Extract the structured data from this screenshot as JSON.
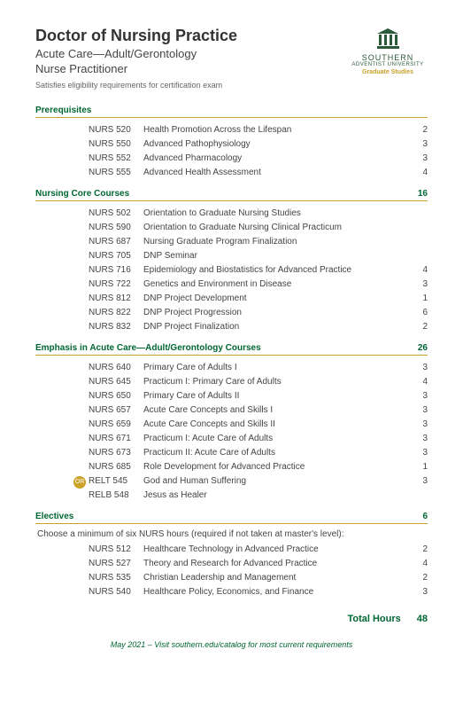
{
  "colors": {
    "accent_green": "#006633",
    "rule_gold": "#c9a227",
    "text": "#333333",
    "muted": "#666666",
    "bg": "#ffffff"
  },
  "header": {
    "main_title": "Doctor of Nursing Practice",
    "sub_title_1": "Acute Care—Adult/Gerontology",
    "sub_title_2": "Nurse Practitioner",
    "note": "Satisfies eligibility requirements for certification exam",
    "logo_line1": "SOUTHERN",
    "logo_line2": "ADVENTIST UNIVERSITY",
    "logo_line3": "Graduate Studies"
  },
  "sections": [
    {
      "label": "Prerequisites",
      "total": "",
      "rows": [
        {
          "code": "NURS 520",
          "name": "Health Promotion Across the Lifespan",
          "cred": "2"
        },
        {
          "code": "NURS 550",
          "name": "Advanced Pathophysiology",
          "cred": "3"
        },
        {
          "code": "NURS 552",
          "name": "Advanced Pharmacology",
          "cred": "3"
        },
        {
          "code": "NURS 555",
          "name": "Advanced Health Assessment",
          "cred": "4"
        }
      ]
    },
    {
      "label": "Nursing Core Courses",
      "total": "16",
      "rows": [
        {
          "code": "NURS 502",
          "name": "Orientation to Graduate Nursing Studies",
          "cred": ""
        },
        {
          "code": "NURS 590",
          "name": "Orientation to Graduate Nursing Clinical Practicum",
          "cred": ""
        },
        {
          "code": "NURS 687",
          "name": "Nursing Graduate Program Finalization",
          "cred": ""
        },
        {
          "code": "NURS 705",
          "name": "DNP Seminar",
          "cred": ""
        },
        {
          "code": "NURS 716",
          "name": "Epidemiology and Biostatistics for Advanced Practice",
          "cred": "4"
        },
        {
          "code": "NURS 722",
          "name": "Genetics and Environment in Disease",
          "cred": "3"
        },
        {
          "code": "NURS 812",
          "name": "DNP Project Development",
          "cred": "1"
        },
        {
          "code": "NURS 822",
          "name": "DNP Project Progression",
          "cred": "6"
        },
        {
          "code": "NURS 832",
          "name": "DNP Project Finalization",
          "cred": "2"
        }
      ]
    },
    {
      "label": "Emphasis in Acute Care—Adult/Gerontology Courses",
      "total": "26",
      "rows": [
        {
          "code": "NURS 640",
          "name": "Primary Care of Adults I",
          "cred": "3"
        },
        {
          "code": "NURS 645",
          "name": "Practicum I: Primary Care of Adults",
          "cred": "4"
        },
        {
          "code": "NURS 650",
          "name": "Primary Care of Adults II",
          "cred": "3"
        },
        {
          "code": "NURS 657",
          "name": "Acute Care Concepts and Skills I",
          "cred": "3"
        },
        {
          "code": "NURS 659",
          "name": "Acute Care Concepts and Skills II",
          "cred": "3"
        },
        {
          "code": "NURS 671",
          "name": "Practicum I: Acute Care of Adults",
          "cred": "3"
        },
        {
          "code": "NURS 673",
          "name": "Practicum II: Acute Care of Adults",
          "cred": "3"
        },
        {
          "code": "NURS 685",
          "name": "Role Development for Advanced Practice",
          "cred": "1"
        },
        {
          "code": "RELT 545",
          "name": "God and Human Suffering",
          "cred": "3",
          "or": "OR"
        },
        {
          "code": "RELB 548",
          "name": "Jesus as Healer",
          "cred": ""
        }
      ]
    },
    {
      "label": "Electives",
      "total": "6",
      "note": "Choose a minimum of six NURS hours (required if not taken at master's level):",
      "rows": [
        {
          "code": "NURS 512",
          "name": "Healthcare Technology in Advanced Practice",
          "cred": "2"
        },
        {
          "code": "NURS 527",
          "name": "Theory and Research for Advanced Practice",
          "cred": "4"
        },
        {
          "code": "NURS 535",
          "name": "Christian Leadership and Management",
          "cred": "2"
        },
        {
          "code": "NURS 540",
          "name": "Healthcare Policy, Economics, and Finance",
          "cred": "3"
        }
      ]
    }
  ],
  "totals": {
    "label": "Total Hours",
    "value": "48"
  },
  "footer": "May 2021 – Visit southern.edu/catalog for most current requirements"
}
